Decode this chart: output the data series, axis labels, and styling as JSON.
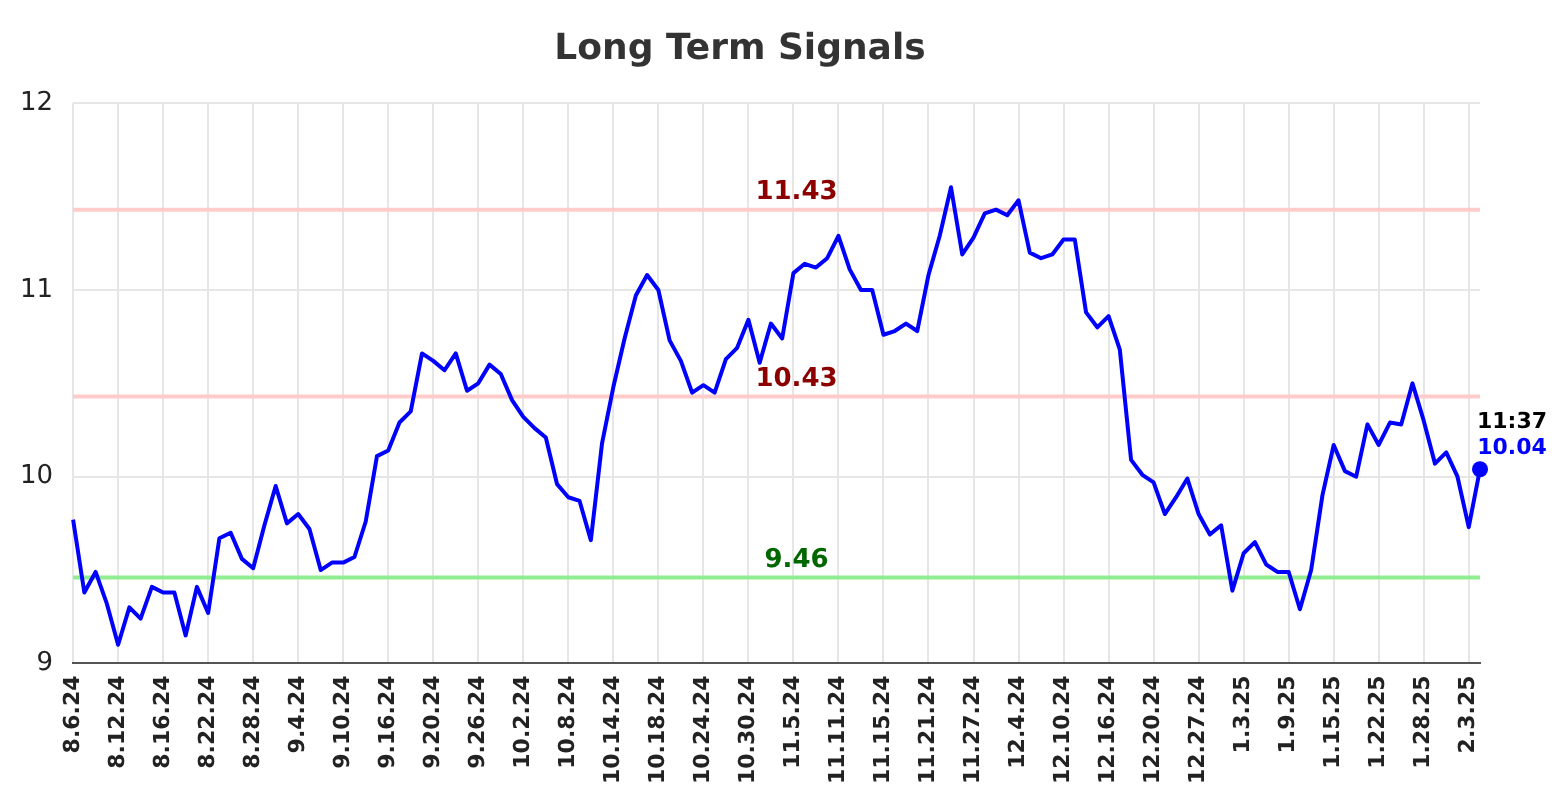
{
  "chart_data": {
    "type": "line",
    "title": "Long Term Signals",
    "categories": [
      "8.6.24",
      null,
      null,
      null,
      "8.12.24",
      null,
      null,
      null,
      "8.16.24",
      null,
      null,
      null,
      "8.22.24",
      null,
      null,
      null,
      "8.28.24",
      null,
      null,
      null,
      "9.4.24",
      null,
      null,
      null,
      "9.10.24",
      null,
      null,
      null,
      "9.16.24",
      null,
      null,
      null,
      "9.20.24",
      null,
      null,
      null,
      "9.26.24",
      null,
      null,
      null,
      "10.2.24",
      null,
      null,
      null,
      "10.8.24",
      null,
      null,
      null,
      "10.14.24",
      null,
      null,
      null,
      "10.18.24",
      null,
      null,
      null,
      "10.24.24",
      null,
      null,
      null,
      "10.30.24",
      null,
      null,
      null,
      "11.5.24",
      null,
      null,
      null,
      "11.11.24",
      null,
      null,
      null,
      "11.15.24",
      null,
      null,
      null,
      "11.21.24",
      null,
      null,
      null,
      "11.27.24",
      null,
      null,
      null,
      "12.4.24",
      null,
      null,
      null,
      "12.10.24",
      null,
      null,
      null,
      "12.16.24",
      null,
      null,
      null,
      "12.20.24",
      null,
      null,
      null,
      "12.27.24",
      null,
      null,
      null,
      "1.3.25",
      null,
      null,
      null,
      "1.9.25",
      null,
      null,
      null,
      "1.15.25",
      null,
      null,
      null,
      "1.22.25",
      null,
      null,
      null,
      "1.28.25",
      null,
      null,
      null,
      "2.3.25",
      null
    ],
    "series": [
      {
        "color": "#0000ff",
        "values": [
          9.77,
          9.38,
          9.49,
          9.32,
          9.1,
          9.3,
          9.24,
          9.41,
          9.38,
          9.38,
          9.15,
          9.41,
          9.27,
          9.67,
          9.7,
          9.56,
          9.51,
          9.74,
          9.95,
          9.75,
          9.8,
          9.72,
          9.5,
          9.54,
          9.54,
          9.57,
          9.76,
          10.11,
          10.14,
          10.29,
          10.35,
          10.66,
          10.62,
          10.57,
          10.66,
          10.46,
          10.5,
          10.6,
          10.55,
          10.41,
          10.32,
          10.26,
          10.21,
          9.96,
          9.89,
          9.87,
          9.66,
          10.18,
          10.48,
          10.74,
          10.97,
          11.08,
          11.0,
          10.73,
          10.62,
          10.45,
          10.49,
          10.45,
          10.63,
          10.69,
          10.84,
          10.61,
          10.82,
          10.74,
          11.09,
          11.14,
          11.12,
          11.17,
          11.29,
          11.11,
          11.0,
          11.0,
          10.76,
          10.78,
          10.82,
          10.78,
          11.08,
          11.29,
          11.55,
          11.19,
          11.28,
          11.41,
          11.43,
          11.4,
          11.48,
          11.2,
          11.17,
          11.19,
          11.27,
          11.27,
          10.88,
          10.8,
          10.86,
          10.68,
          10.09,
          10.01,
          9.97,
          9.8,
          9.89,
          9.99,
          9.8,
          9.69,
          9.74,
          9.39,
          9.59,
          9.65,
          9.53,
          9.49,
          9.49,
          9.29,
          9.5,
          9.9,
          10.17,
          10.03,
          10.0,
          10.28,
          10.17,
          10.29,
          10.28,
          10.5,
          10.3,
          10.07,
          10.13,
          10.0,
          9.73,
          10.04
        ]
      }
    ],
    "ylim": [
      9,
      12
    ],
    "yticks": [
      9,
      10,
      11,
      12
    ],
    "grid": true,
    "legend": false,
    "marker": "none",
    "line_style": "solid",
    "ref_lines": [
      {
        "axis": "y",
        "value": 11.43,
        "label": "11.43",
        "color": "#ffcccc"
      },
      {
        "axis": "y",
        "value": 10.43,
        "label": "10.43",
        "color": "#ffcccc"
      },
      {
        "axis": "y",
        "value": 9.46,
        "label": "9.46",
        "color": "#90ee90"
      }
    ],
    "annotations": [
      "11:37",
      "10.04"
    ]
  }
}
